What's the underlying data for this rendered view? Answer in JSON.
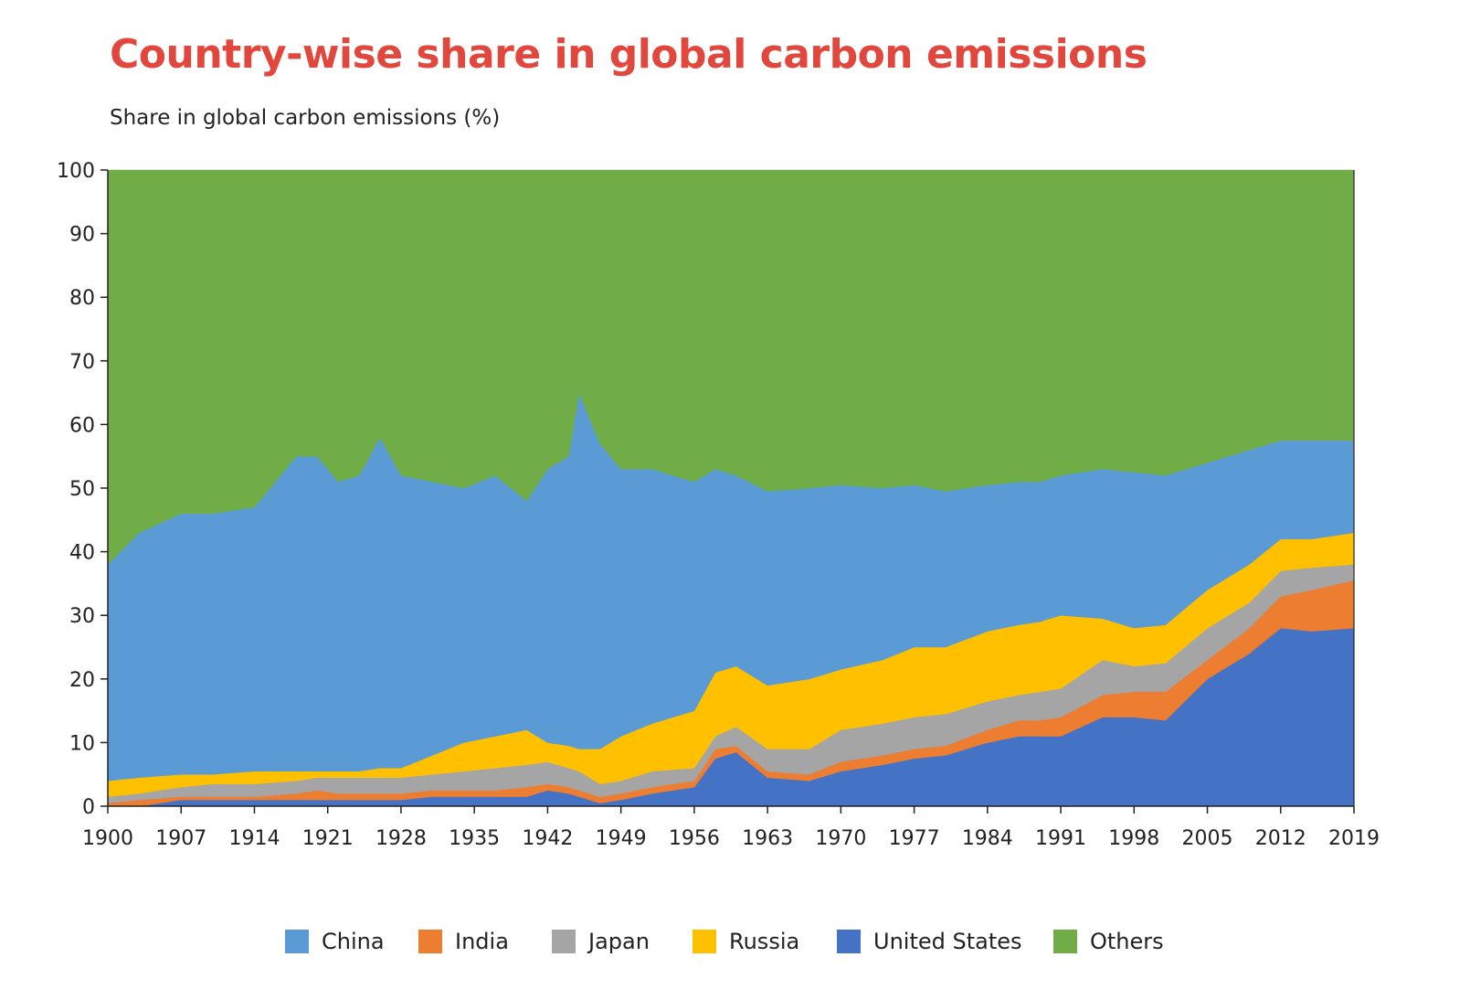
{
  "chart_data": {
    "type": "area",
    "stacked": true,
    "title": "Country-wise share in global carbon emissions",
    "subtitle": "Share in global carbon emissions (%)",
    "xlabel": "",
    "ylabel": "Share in global carbon emissions (%)",
    "ylim": [
      0,
      100
    ],
    "xlim": [
      1900,
      2019
    ],
    "y_ticks": [
      0,
      10,
      20,
      30,
      40,
      50,
      60,
      70,
      80,
      90,
      100
    ],
    "x_ticks": [
      1900,
      1907,
      1914,
      1921,
      1928,
      1935,
      1942,
      1949,
      1956,
      1963,
      1970,
      1977,
      1984,
      1991,
      1998,
      2005,
      2012,
      2019
    ],
    "legend_position": "bottom",
    "stack_order": [
      "United States",
      "India",
      "Japan",
      "Russia",
      "China",
      "Others"
    ],
    "legend_order": [
      "China",
      "India",
      "Japan",
      "Russia",
      "United States",
      "Others"
    ],
    "colors": {
      "China": "#5b9bd5",
      "India": "#ed7d31",
      "Japan": "#a5a5a5",
      "Russia": "#ffc000",
      "United States": "#4472c4",
      "Others": "#70ad47"
    },
    "cumulative_tops": {
      "x": [
        1900,
        1903,
        1907,
        1910,
        1914,
        1918,
        1920,
        1922,
        1924,
        1926,
        1928,
        1931,
        1934,
        1937,
        1940,
        1942,
        1944,
        1945,
        1947,
        1949,
        1952,
        1956,
        1958,
        1960,
        1963,
        1967,
        1970,
        1974,
        1977,
        1980,
        1984,
        1987,
        1989,
        1991,
        1995,
        1998,
        2001,
        2005,
        2009,
        2012,
        2015,
        2019
      ],
      "United States": [
        0,
        0,
        1,
        1,
        1,
        1,
        1,
        1,
        1,
        1,
        1,
        1.5,
        1.5,
        1.5,
        1.5,
        2.5,
        2,
        1.5,
        0.5,
        1,
        2,
        3,
        7.5,
        8.5,
        4.5,
        4,
        5.5,
        6.5,
        7.5,
        8,
        10,
        11,
        11,
        11,
        14,
        14,
        13.5,
        20,
        24,
        28,
        27.5,
        28
      ],
      "India": [
        0.5,
        1,
        1.5,
        1.5,
        1.5,
        2,
        2.5,
        2,
        2,
        2,
        2,
        2.5,
        2.5,
        2.5,
        3,
        3.5,
        3,
        2.5,
        1.5,
        2,
        3,
        4,
        9,
        9.5,
        5.5,
        5,
        7,
        8,
        9,
        9.5,
        12,
        13.5,
        13.5,
        14,
        17.5,
        18,
        18,
        23,
        28,
        33,
        34,
        35.5
      ],
      "Japan": [
        1.5,
        2,
        3,
        3.5,
        3.5,
        4,
        4.5,
        4.5,
        4.5,
        4.5,
        4.5,
        5,
        5.5,
        6,
        6.5,
        7,
        6,
        5.5,
        3.5,
        4,
        5.5,
        6,
        11,
        12.5,
        9,
        9,
        12,
        13,
        14,
        14.5,
        16.5,
        17.5,
        18,
        18.5,
        23,
        22,
        22.5,
        28,
        32,
        37,
        37.5,
        38
      ],
      "Russia": [
        4,
        4.5,
        5,
        5,
        5.5,
        5.5,
        5.5,
        5.5,
        5.5,
        6,
        6,
        8,
        10,
        11,
        12,
        10,
        9.5,
        9,
        9,
        11,
        13,
        15,
        21,
        22,
        19,
        20,
        21.5,
        23,
        25,
        25,
        27.5,
        28.5,
        29,
        30,
        29.5,
        28,
        28.5,
        34,
        38,
        42,
        42,
        43
      ],
      "China": [
        38,
        43,
        46,
        46,
        47,
        55,
        55,
        51,
        52,
        58,
        52,
        51,
        50,
        52,
        48,
        53,
        55,
        65,
        57,
        53,
        53,
        51,
        53,
        52,
        49.5,
        50,
        50.5,
        50,
        50.5,
        49.5,
        50.5,
        51,
        51,
        52,
        53,
        52.5,
        52,
        54,
        56,
        57.5,
        57.5,
        57.5
      ],
      "Others": [
        100,
        100,
        100,
        100,
        100,
        100,
        100,
        100,
        100,
        100,
        100,
        100,
        100,
        100,
        100,
        100,
        100,
        100,
        100,
        100,
        100,
        100,
        100,
        100,
        100,
        100,
        100,
        100,
        100,
        100,
        100,
        100,
        100,
        100,
        100,
        100,
        100,
        100,
        100,
        100,
        100,
        100
      ]
    }
  }
}
